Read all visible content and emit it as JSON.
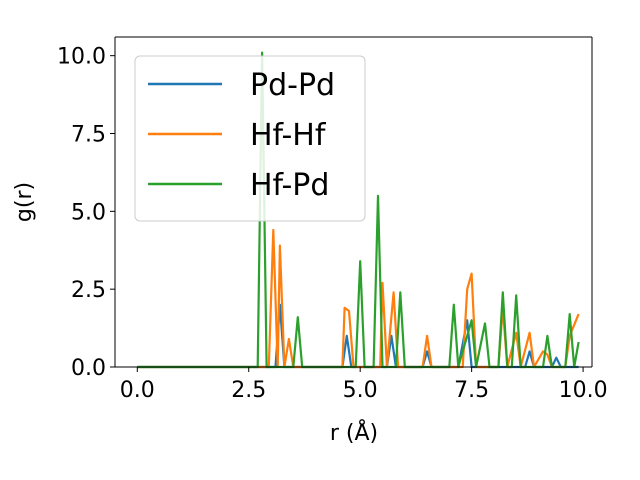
{
  "chart_data": {
    "type": "line",
    "title": "",
    "xlabel": "r (Å)",
    "ylabel": "g(r)",
    "xlim": [
      -0.5,
      10.2
    ],
    "ylim": [
      0,
      10.6
    ],
    "xticks": [
      0.0,
      2.5,
      5.0,
      7.5,
      10.0
    ],
    "xtick_labels": [
      "0.0",
      "2.5",
      "5.0",
      "7.5",
      "10.0"
    ],
    "yticks": [
      0.0,
      2.5,
      5.0,
      7.5,
      10.0
    ],
    "ytick_labels": [
      "0.0",
      "2.5",
      "5.0",
      "7.5",
      "10.0"
    ],
    "grid": false,
    "legend_position": "top-left",
    "series": [
      {
        "name": "Pd-Pd",
        "color": "#1f77b4",
        "points": [
          [
            0,
            0
          ],
          [
            2.7,
            0
          ],
          [
            3.0,
            0
          ],
          [
            3.1,
            0
          ],
          [
            3.2,
            2.0
          ],
          [
            3.3,
            0
          ],
          [
            4.6,
            0
          ],
          [
            4.7,
            1.0
          ],
          [
            4.8,
            0
          ],
          [
            5.6,
            0
          ],
          [
            5.7,
            1.0
          ],
          [
            5.8,
            0
          ],
          [
            6.4,
            0
          ],
          [
            6.5,
            0.5
          ],
          [
            6.6,
            0
          ],
          [
            7.2,
            0
          ],
          [
            7.4,
            1.5
          ],
          [
            7.5,
            0
          ],
          [
            8.7,
            0
          ],
          [
            8.8,
            0.5
          ],
          [
            8.9,
            0
          ],
          [
            9.3,
            0
          ],
          [
            9.4,
            0.3
          ],
          [
            9.5,
            0
          ],
          [
            9.8,
            0
          ],
          [
            9.9,
            0
          ]
        ]
      },
      {
        "name": "Hf-Hf",
        "color": "#ff7f0e",
        "points": [
          [
            0,
            0
          ],
          [
            2.95,
            0
          ],
          [
            3.05,
            4.4
          ],
          [
            3.15,
            0
          ],
          [
            3.2,
            3.9
          ],
          [
            3.3,
            0
          ],
          [
            3.4,
            0.9
          ],
          [
            3.5,
            0
          ],
          [
            4.6,
            0
          ],
          [
            4.65,
            1.9
          ],
          [
            4.75,
            1.8
          ],
          [
            4.85,
            0
          ],
          [
            5.45,
            0
          ],
          [
            5.5,
            2.7
          ],
          [
            5.6,
            0
          ],
          [
            5.75,
            2.4
          ],
          [
            5.85,
            0
          ],
          [
            6.4,
            0
          ],
          [
            6.5,
            1.0
          ],
          [
            6.6,
            0
          ],
          [
            7.3,
            0
          ],
          [
            7.4,
            2.5
          ],
          [
            7.5,
            3.0
          ],
          [
            7.6,
            0
          ],
          [
            8.1,
            0
          ],
          [
            8.2,
            1.9
          ],
          [
            8.3,
            0
          ],
          [
            8.5,
            1.1
          ],
          [
            8.6,
            0
          ],
          [
            8.8,
            1.1
          ],
          [
            8.9,
            0
          ],
          [
            9.1,
            0.5
          ],
          [
            9.2,
            0.4
          ],
          [
            9.3,
            0
          ],
          [
            9.6,
            0
          ],
          [
            9.7,
            1.0
          ],
          [
            9.9,
            1.7
          ]
        ]
      },
      {
        "name": "Hf-Pd",
        "color": "#2ca02c",
        "points": [
          [
            0,
            0
          ],
          [
            2.7,
            0
          ],
          [
            2.8,
            10.1
          ],
          [
            2.9,
            0
          ],
          [
            3.5,
            0
          ],
          [
            3.6,
            1.6
          ],
          [
            3.7,
            0
          ],
          [
            4.9,
            0
          ],
          [
            5.0,
            3.4
          ],
          [
            5.1,
            0
          ],
          [
            5.3,
            0
          ],
          [
            5.4,
            5.5
          ],
          [
            5.5,
            0
          ],
          [
            5.8,
            0
          ],
          [
            5.9,
            2.4
          ],
          [
            6.0,
            0
          ],
          [
            7.0,
            0
          ],
          [
            7.1,
            2.0
          ],
          [
            7.2,
            0
          ],
          [
            7.5,
            1.5
          ],
          [
            7.6,
            0
          ],
          [
            7.8,
            1.4
          ],
          [
            7.9,
            0
          ],
          [
            8.1,
            0
          ],
          [
            8.2,
            2.4
          ],
          [
            8.3,
            0
          ],
          [
            8.4,
            0
          ],
          [
            8.5,
            2.3
          ],
          [
            8.6,
            0
          ],
          [
            8.9,
            0
          ],
          [
            9.0,
            0
          ],
          [
            9.1,
            0
          ],
          [
            9.2,
            1.0
          ],
          [
            9.3,
            0
          ],
          [
            9.5,
            0
          ],
          [
            9.6,
            0
          ],
          [
            9.7,
            1.7
          ],
          [
            9.8,
            0
          ],
          [
            9.9,
            0.8
          ]
        ]
      }
    ]
  }
}
